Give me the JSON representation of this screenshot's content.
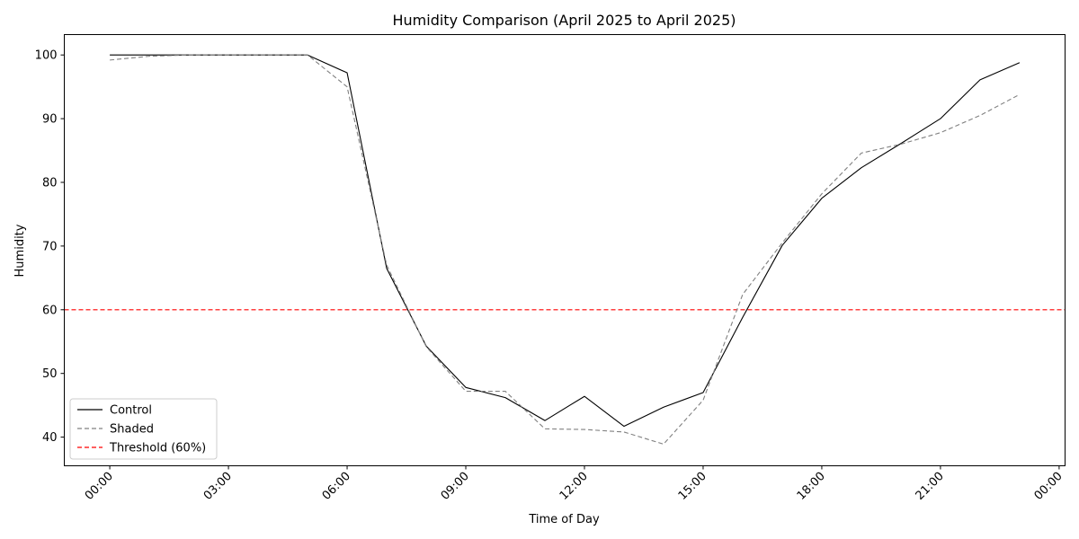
{
  "chart_data": {
    "type": "line",
    "title": "Humidity Comparison (April 2025 to April 2025)",
    "xlabel": "Time of Day",
    "ylabel": "Humidity",
    "xlim": [
      -1.15,
      24.15
    ],
    "ylim": [
      35.5,
      103.2
    ],
    "x": [
      0,
      1,
      2,
      3,
      4,
      5,
      6,
      7,
      8,
      9,
      10,
      11,
      12,
      13,
      14,
      15,
      16,
      17,
      18,
      19,
      20,
      21,
      22,
      23
    ],
    "x_ticks": [
      0,
      3,
      6,
      9,
      12,
      15,
      18,
      21,
      24
    ],
    "x_tick_labels": [
      "00:00",
      "03:00",
      "06:00",
      "09:00",
      "12:00",
      "15:00",
      "18:00",
      "21:00",
      "00:00"
    ],
    "y_ticks": [
      40,
      50,
      60,
      70,
      80,
      90,
      100
    ],
    "y_tick_labels": [
      "40",
      "50",
      "60",
      "70",
      "80",
      "90",
      "100"
    ],
    "series": [
      {
        "name": "Control",
        "color": "#000000",
        "dash": "solid",
        "values": [
          100,
          100,
          100,
          100,
          100,
          100,
          97.2,
          66.5,
          54.3,
          47.8,
          46.2,
          42.6,
          46.4,
          41.7,
          44.7,
          47.0,
          58.8,
          70.1,
          77.5,
          82.3,
          86.1,
          90.0,
          96.1,
          98.8
        ]
      },
      {
        "name": "Shaded",
        "color": "#808080",
        "dash": "dashed",
        "values": [
          99.2,
          99.8,
          100,
          100,
          100,
          100,
          95.0,
          67.0,
          54.2,
          47.2,
          47.2,
          41.3,
          41.2,
          40.8,
          38.9,
          45.8,
          62.4,
          70.5,
          78.2,
          84.6,
          86.0,
          87.8,
          90.5,
          93.8
        ]
      }
    ],
    "reference_lines": [
      {
        "name": "Threshold (60%)",
        "y": 60,
        "color": "#ff0000",
        "dash": "dashed"
      }
    ],
    "grid": false,
    "legend_position": "lower-left"
  }
}
